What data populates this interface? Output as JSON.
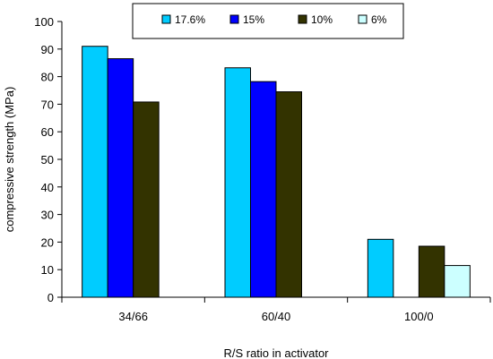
{
  "chart_data": {
    "type": "bar",
    "categories": [
      "34/66",
      "60/40",
      "100/0"
    ],
    "series": [
      {
        "name": "17.6%",
        "color": "#00CCFF",
        "values": [
          91,
          83.2,
          21
        ]
      },
      {
        "name": "15%",
        "color": "#0000FF",
        "values": [
          86.5,
          78.2,
          null
        ]
      },
      {
        "name": "10%",
        "color": "#333300",
        "values": [
          70.8,
          74.5,
          18.5
        ]
      },
      {
        "name": "6%",
        "color": "#CCFFFF",
        "values": [
          null,
          null,
          11.5
        ]
      }
    ],
    "xlabel": "R/S ratio in activator",
    "ylabel": "compressive strength (MPa)",
    "ylim": [
      0,
      100
    ],
    "yticks": [
      0,
      10,
      20,
      30,
      40,
      50,
      60,
      70,
      80,
      90,
      100
    ],
    "grid": false,
    "legend_position": "top"
  }
}
